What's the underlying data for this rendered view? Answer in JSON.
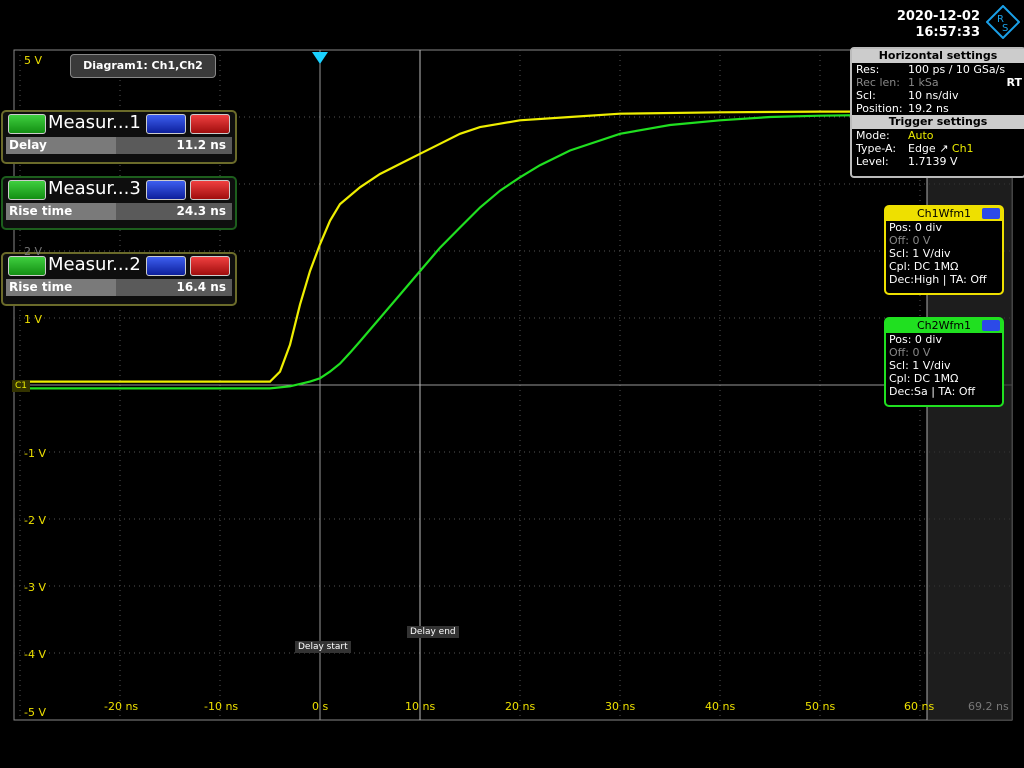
{
  "datetime": {
    "date": "2020-12-02",
    "time": "16:57:33"
  },
  "diagram_tab": "Diagram1: Ch1,Ch2",
  "measurements": [
    {
      "title": "Measur...1",
      "label": "Delay",
      "value": "11.2 ns",
      "color": "#6b6b2a"
    },
    {
      "title": "Measur...3",
      "label": "Rise time",
      "value": "24.3 ns",
      "color": "#1d5e1d"
    },
    {
      "title": "Measur...2",
      "label": "Rise time",
      "value": "16.4 ns",
      "color": "#6b6b2a"
    }
  ],
  "horizontal": {
    "title": "Horizontal settings",
    "res_k": "Res:",
    "res_v": "100 ps / 10 GSa/s",
    "len_k": "Rec len:",
    "len_v": "1 kSa",
    "rt": "RT",
    "scl_k": "Scl:",
    "scl_v": "10 ns/div",
    "pos_k": "Position:",
    "pos_v": "19.2 ns"
  },
  "trigger": {
    "title": "Trigger settings",
    "mode_k": "Mode:",
    "mode_v": "Auto",
    "type_k": "Type-A:",
    "type_v": "Edge",
    "type_ch": "Ch1",
    "level_k": "Level:",
    "level_v": "1.7139 V"
  },
  "ch1wfm": {
    "title": "Ch1Wfm1",
    "pos": "Pos: 0 div",
    "off": "Off: 0 V",
    "scl": "Scl: 1 V/div",
    "cpl": "Cpl: DC 1MΩ",
    "dec": "Dec:High | TA: Off"
  },
  "ch2wfm": {
    "title": "Ch2Wfm1",
    "pos": "Pos: 0 div",
    "off": "Off: 0 V",
    "scl": "Scl: 1 V/div",
    "cpl": "Cpl: DC 1MΩ",
    "dec": "Dec:Sa | TA: Off"
  },
  "y_labels": [
    "5 V",
    "2 V",
    "1 V",
    "-1 V",
    "-2 V",
    "-3 V",
    "-4 V",
    "-5 V"
  ],
  "x_labels": [
    "-20 ns",
    "-10 ns",
    "0 s",
    "10 ns",
    "20 ns",
    "30 ns",
    "40 ns",
    "50 ns",
    "60 ns",
    "69.2 ns"
  ],
  "markers": {
    "delay_start": "Delay start",
    "delay_end": "Delay end",
    "ch1": "C1"
  },
  "colors": {
    "ch1": "#eeee00",
    "ch2": "#20e020",
    "grid": "#555555"
  },
  "chart_data": {
    "type": "line",
    "title": "Diagram1: Ch1,Ch2",
    "xlabel": "",
    "ylabel": "",
    "xlim": [
      -30,
      69.2
    ],
    "ylim": [
      -5,
      5
    ],
    "series": [
      {
        "name": "Ch1Wfm1",
        "x": [
          -30,
          -5,
          -4,
          -3,
          -2,
          -1,
          0,
          1,
          2,
          4,
          6,
          8,
          10,
          12,
          14,
          16,
          18,
          20,
          25,
          30,
          40,
          50,
          60,
          69.2
        ],
        "values": [
          0.05,
          0.05,
          0.2,
          0.6,
          1.2,
          1.7,
          2.1,
          2.45,
          2.7,
          2.95,
          3.15,
          3.3,
          3.45,
          3.6,
          3.75,
          3.85,
          3.9,
          3.95,
          4.0,
          4.05,
          4.07,
          4.08,
          4.08,
          4.08
        ]
      },
      {
        "name": "Ch2Wfm1",
        "x": [
          -30,
          -5,
          -3,
          -1,
          0,
          1,
          2,
          3,
          4,
          6,
          8,
          10,
          12,
          14,
          16,
          18,
          20,
          22,
          25,
          30,
          35,
          40,
          45,
          50,
          60,
          69.2
        ],
        "values": [
          -0.05,
          -0.05,
          -0.02,
          0.05,
          0.1,
          0.2,
          0.32,
          0.48,
          0.65,
          1.0,
          1.35,
          1.7,
          2.05,
          2.35,
          2.65,
          2.9,
          3.1,
          3.28,
          3.5,
          3.75,
          3.88,
          3.95,
          4.0,
          4.02,
          4.04,
          4.04
        ]
      }
    ]
  }
}
